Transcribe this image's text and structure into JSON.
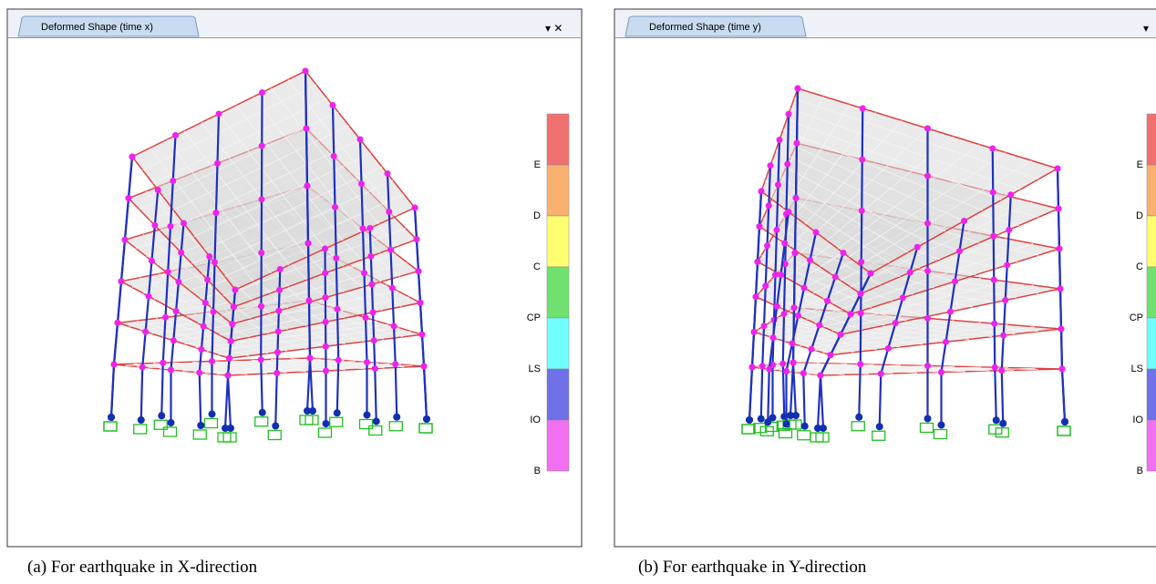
{
  "panels": [
    {
      "tab": "Deformed Shape (time x)",
      "legend": [
        "E",
        "D",
        "C",
        "CP",
        "LS",
        "IO",
        "B"
      ],
      "caption": "(a) For earthquake in X-direction"
    },
    {
      "tab": "Deformed Shape (time y)",
      "legend": [
        "E",
        "D",
        "C",
        "CP",
        "LS",
        "IO",
        "B"
      ],
      "caption": "(b) For earthquake in Y-direction"
    }
  ]
}
